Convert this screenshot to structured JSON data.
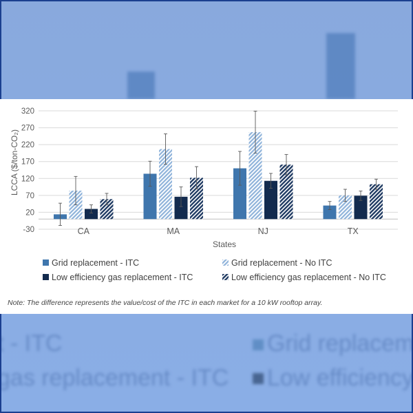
{
  "chart_data": {
    "type": "bar",
    "categories": [
      "CA",
      "MA",
      "NJ",
      "TX"
    ],
    "series": [
      {
        "name": "Grid replacement - ITC",
        "values": [
          14,
          134,
          150,
          40
        ],
        "errors": [
          33,
          37,
          50,
          12
        ],
        "color": "#3f76ad",
        "pattern": "solid"
      },
      {
        "name": "Grid replacement - No ITC",
        "values": [
          84,
          207,
          257,
          70
        ],
        "errors": [
          42,
          45,
          62,
          18
        ],
        "color": "#8fb3da",
        "pattern": "diagonal-light"
      },
      {
        "name": "Low efficiency gas replacement - ITC",
        "values": [
          30,
          66,
          113,
          69
        ],
        "errors": [
          12,
          29,
          22,
          14
        ],
        "color": "#132b4e",
        "pattern": "solid"
      },
      {
        "name": "Low efficiency gas replacement - No ITC",
        "values": [
          59,
          122,
          161,
          103
        ],
        "errors": [
          17,
          33,
          30,
          15
        ],
        "color": "#1f3a62",
        "pattern": "diagonal-dark"
      }
    ],
    "ylabel": "LCCA ($/ton-CO₂)",
    "xlabel": "States",
    "ylim": [
      -30,
      320
    ],
    "yticks": [
      -30,
      20,
      70,
      120,
      170,
      220,
      270,
      320
    ],
    "grid": true,
    "legend_position": "bottom"
  },
  "note": "Note: The difference represents the value/cost of the ITC in each market for a 10 kW rooftop array.",
  "background_text": {
    "left_top": "t - ITC",
    "left_bottom": "gas replacement - ITC",
    "right_top": "Grid replaceme",
    "right_bottom": "Low efficiency"
  }
}
